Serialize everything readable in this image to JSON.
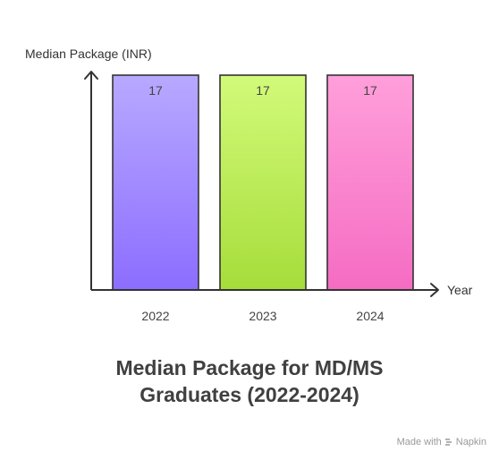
{
  "chart_data": {
    "type": "bar",
    "categories": [
      "2022",
      "2023",
      "2024"
    ],
    "values": [
      17,
      17,
      17
    ],
    "title_lines": [
      "Median Package for MD/MS",
      "Graduates (2022-2024)"
    ],
    "xlabel": "Year",
    "ylabel": "Median Package (INR)",
    "ylim": [
      0,
      17
    ],
    "grid": false,
    "legend": "none",
    "bar_colors": [
      {
        "top": "#b8a9ff",
        "bottom": "#8c6dff",
        "stroke": "#333333"
      },
      {
        "top": "#d2fa7a",
        "bottom": "#a6dd3a",
        "stroke": "#333333"
      },
      {
        "top": "#ff9fda",
        "bottom": "#f56cc3",
        "stroke": "#333333"
      }
    ],
    "axis_color": "#333333",
    "label_color": "#444444"
  },
  "watermark": {
    "prefix": "Made with",
    "brand": "Napkin"
  }
}
